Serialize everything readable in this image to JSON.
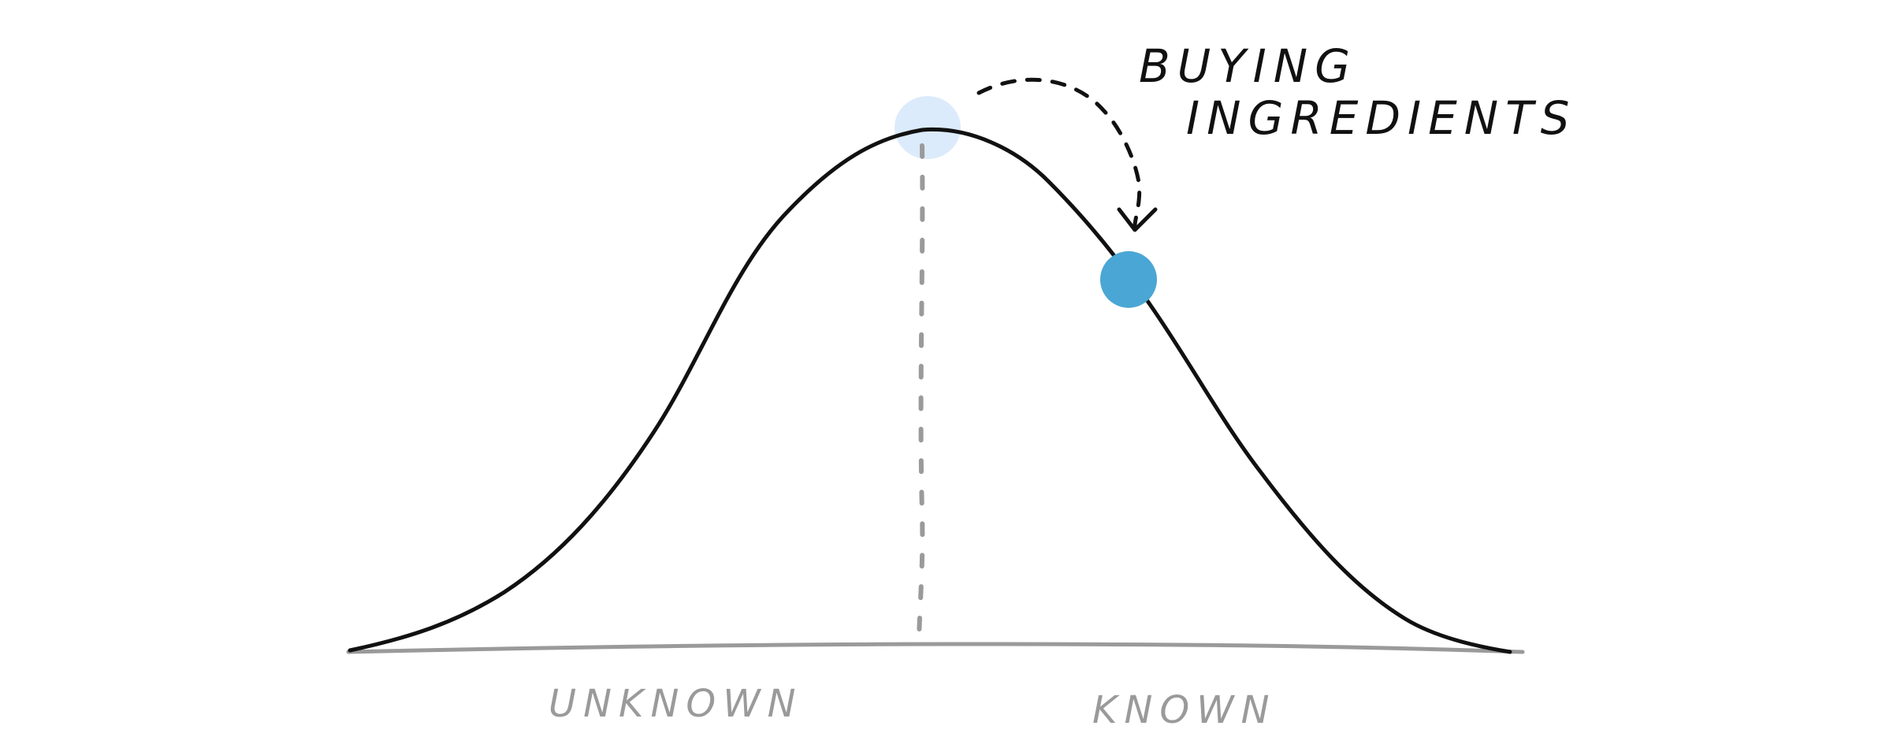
{
  "annotation": {
    "line1": "BUYING",
    "line2": "INGREDIENTS"
  },
  "axis": {
    "left_label": "UNKNOWN",
    "right_label": "KNOWN"
  },
  "colors": {
    "ink": "#111111",
    "axis_gray": "#9a9a9a",
    "peak_highlight": "#dcebfb",
    "marker_blue": "#4aa6d4"
  }
}
